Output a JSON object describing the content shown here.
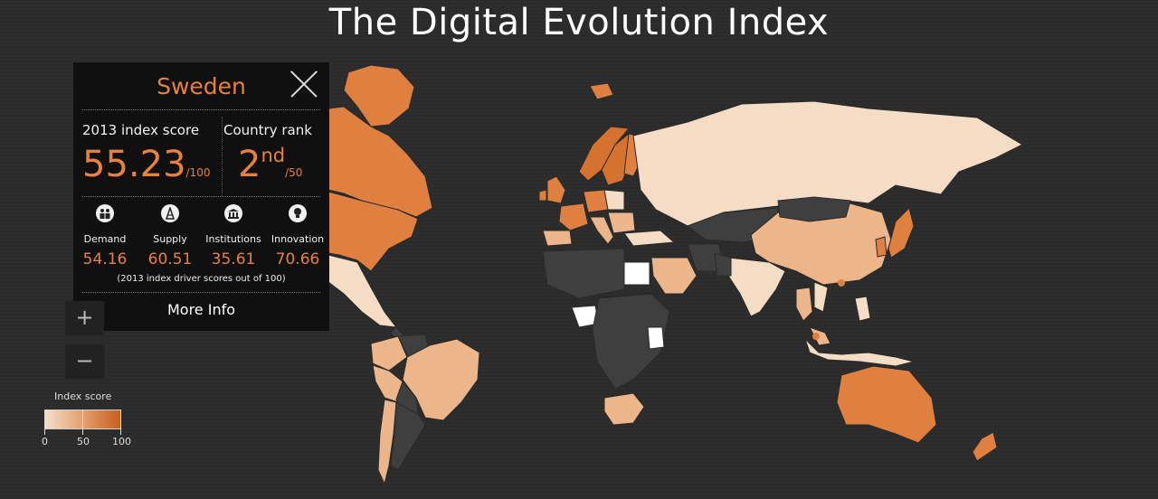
{
  "title": "The Digital Evolution Index",
  "panel": {
    "country": "Sweden",
    "score_label": "2013 index score",
    "score": "55.23",
    "score_out_of": "/100",
    "rank_label": "Country rank",
    "rank": "2",
    "rank_suffix": "nd",
    "rank_out_of": "/50",
    "drivers": [
      {
        "label": "Demand",
        "value": "54.16",
        "icon": "people-icon"
      },
      {
        "label": "Supply",
        "value": "60.51",
        "icon": "tower-icon"
      },
      {
        "label": "Institutions",
        "value": "35.61",
        "icon": "building-icon"
      },
      {
        "label": "Innovation",
        "value": "70.66",
        "icon": "lightbulb-icon"
      }
    ],
    "drivers_note": "(2013 index driver scores out of 100)",
    "more_info": "More Info"
  },
  "zoom": {
    "in": "+",
    "out": "−"
  },
  "legend": {
    "title": "Index score",
    "ticks": [
      "0",
      "50",
      "100"
    ],
    "colors": [
      "#f3ddc8",
      "#e3a06f",
      "#c95f1f"
    ]
  },
  "map_colors": {
    "no_data": "#3f3f3f",
    "low": "#f5dcc5",
    "mid": "#edb68a",
    "high": "#e08040",
    "top": "#d6722f",
    "white": "#ffffff"
  }
}
